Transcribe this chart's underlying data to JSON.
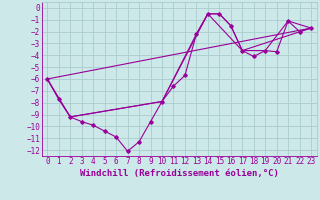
{
  "xlabel": "Windchill (Refroidissement éolien,°C)",
  "bg_color": "#cce8e8",
  "grid_color": "#aacccc",
  "line_color": "#990099",
  "xlim": [
    -0.5,
    23.5
  ],
  "ylim": [
    -12.5,
    0.5
  ],
  "xticks": [
    0,
    1,
    2,
    3,
    4,
    5,
    6,
    7,
    8,
    9,
    10,
    11,
    12,
    13,
    14,
    15,
    16,
    17,
    18,
    19,
    20,
    21,
    22,
    23
  ],
  "yticks": [
    0,
    -1,
    -2,
    -3,
    -4,
    -5,
    -6,
    -7,
    -8,
    -9,
    -10,
    -11,
    -12
  ],
  "line1_x": [
    0,
    1,
    2,
    3,
    4,
    5,
    6,
    7,
    8,
    9,
    10,
    11,
    12,
    13,
    14,
    15,
    16,
    17,
    18,
    19,
    20,
    21,
    22,
    23
  ],
  "line1_y": [
    -6.0,
    -7.7,
    -9.2,
    -9.6,
    -9.9,
    -10.4,
    -10.9,
    -12.1,
    -11.3,
    -9.6,
    -7.9,
    -6.6,
    -5.7,
    -2.2,
    -0.5,
    -0.5,
    -1.5,
    -3.6,
    -4.1,
    -3.6,
    -3.7,
    -1.1,
    -2.0,
    -1.7
  ],
  "line2_x": [
    0,
    1,
    2,
    10,
    13,
    14,
    15,
    16,
    17,
    19,
    21,
    23
  ],
  "line2_y": [
    -6.0,
    -7.7,
    -9.2,
    -7.9,
    -2.2,
    -0.5,
    -0.5,
    -1.5,
    -3.6,
    -3.6,
    -1.1,
    -1.7
  ],
  "line3_x": [
    0,
    23
  ],
  "line3_y": [
    -6.0,
    -1.7
  ],
  "line4_x": [
    0,
    2,
    10,
    14,
    17,
    23
  ],
  "line4_y": [
    -6.0,
    -9.2,
    -7.9,
    -0.5,
    -3.6,
    -1.7
  ],
  "font_family": "monospace",
  "tick_fontsize": 5.5,
  "xlabel_fontsize": 6.5
}
